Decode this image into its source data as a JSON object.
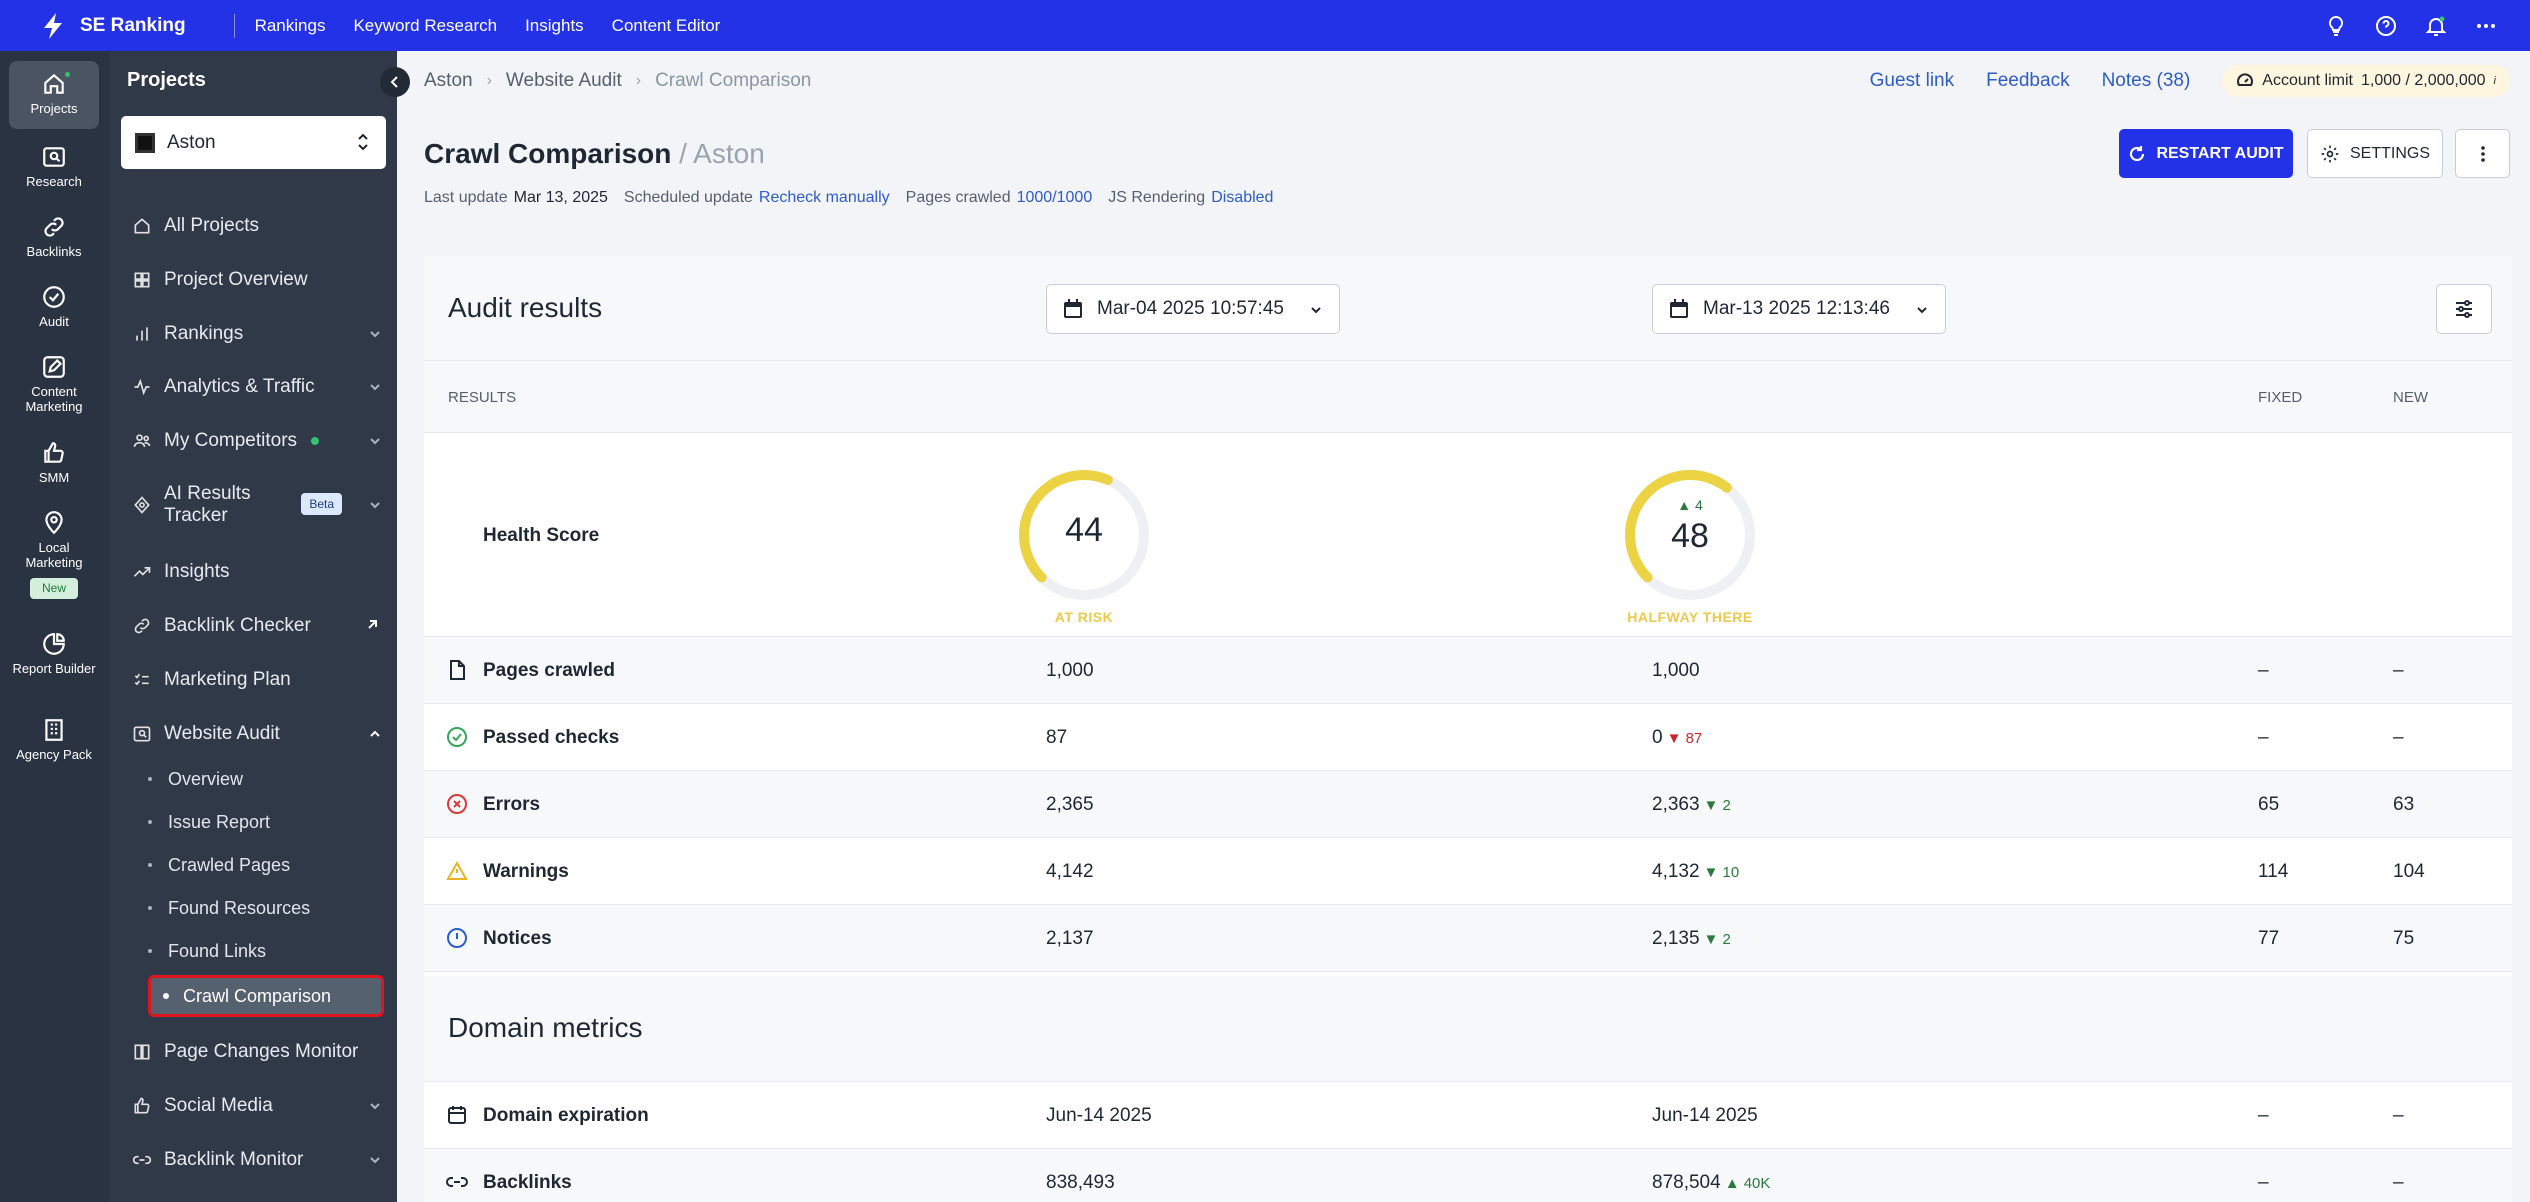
{
  "topbar": {
    "brand": "SE Ranking",
    "nav": [
      "Rankings",
      "Keyword Research",
      "Insights",
      "Content Editor"
    ]
  },
  "rail": {
    "items": [
      {
        "label": "Projects",
        "icon": "home-icon"
      },
      {
        "label": "Research",
        "icon": "research-icon"
      },
      {
        "label": "Backlinks",
        "icon": "link-icon"
      },
      {
        "label": "Audit",
        "icon": "check-circle-icon"
      },
      {
        "label": "Content Marketing",
        "icon": "edit-icon"
      },
      {
        "label": "SMM",
        "icon": "thumb-up-icon"
      },
      {
        "label": "Local Marketing",
        "icon": "location-icon"
      },
      {
        "label": "Report Builder",
        "icon": "report-icon"
      },
      {
        "label": "Agency Pack",
        "icon": "building-icon"
      }
    ],
    "new_badge": "New"
  },
  "sidebar": {
    "title": "Projects",
    "project": "Aston",
    "items": {
      "all_projects": "All Projects",
      "project_overview": "Project Overview",
      "rankings": "Rankings",
      "analytics": "Analytics & Traffic",
      "competitors": "My Competitors",
      "ai_tracker": "AI Results Tracker",
      "beta": "Beta",
      "insights": "Insights",
      "backlink_checker": "Backlink Checker",
      "marketing_plan": "Marketing Plan",
      "website_audit": "Website Audit",
      "page_changes": "Page Changes Monitor",
      "social_media": "Social Media",
      "backlink_monitor": "Backlink Monitor"
    },
    "audit_sub": [
      "Overview",
      "Issue Report",
      "Crawled Pages",
      "Found Resources",
      "Found Links",
      "Crawl Comparison"
    ]
  },
  "header": {
    "breadcrumb": [
      "Aston",
      "Website Audit",
      "Crawl Comparison"
    ],
    "guest_link": "Guest link",
    "feedback": "Feedback",
    "notes": "Notes (38)",
    "account_limit_label": "Account limit",
    "account_limit_value": "1,000 / 2,000,000",
    "account_info": "i",
    "title": "Crawl Comparison",
    "title_sub": "/ Aston",
    "last_update_label": "Last update",
    "last_update": "Mar 13, 2025",
    "scheduled_label": "Scheduled update",
    "scheduled": "Recheck manually",
    "pages_crawled_label": "Pages crawled",
    "pages_crawled": "1000/1000",
    "js_label": "JS Rendering",
    "js": "Disabled",
    "restart": "RESTART AUDIT",
    "settings": "SETTINGS"
  },
  "audit": {
    "title": "Audit results",
    "date1": "Mar-04 2025 10:57:45",
    "date2": "Mar-13 2025 12:13:46",
    "columns": {
      "results": "RESULTS",
      "fixed": "FIXED",
      "new": "NEW"
    },
    "health": {
      "label": "Health Score",
      "score1": "44",
      "status1": "AT RISK",
      "fraction1": 0.44,
      "score2": "48",
      "status2": "HALFWAY THERE",
      "fraction2": 0.48,
      "delta2": "▲ 4"
    },
    "rows": [
      {
        "name": "Pages crawled",
        "icon": "page-icon",
        "v1": "1,000",
        "v2": "1,000",
        "delta": "",
        "fixed": "–",
        "new": "–"
      },
      {
        "name": "Passed checks",
        "icon": "check-circle-icon",
        "v1": "87",
        "v2": "0",
        "delta": "▼ 87",
        "fixed": "–",
        "new": "–"
      },
      {
        "name": "Errors",
        "icon": "error-icon",
        "v1": "2,365",
        "v2": "2,363",
        "delta": "▼ 2",
        "fixed": "65",
        "new": "63"
      },
      {
        "name": "Warnings",
        "icon": "warning-icon",
        "v1": "4,142",
        "v2": "4,132",
        "delta": "▼ 10",
        "fixed": "114",
        "new": "104"
      },
      {
        "name": "Notices",
        "icon": "info-icon",
        "v1": "2,137",
        "v2": "2,135",
        "delta": "▼ 2",
        "fixed": "77",
        "new": "75"
      }
    ],
    "domain_title": "Domain metrics",
    "domain_rows": [
      {
        "name": "Domain expiration",
        "icon": "calendar-icon",
        "v1": "Jun-14 2025",
        "v2": "Jun-14 2025",
        "delta": "",
        "fixed": "–",
        "new": "–"
      },
      {
        "name": "Backlinks",
        "icon": "link-icon",
        "v1": "838,493",
        "v2": "878,504",
        "delta": "▲ 40K",
        "fixed": "–",
        "new": "–"
      }
    ]
  }
}
